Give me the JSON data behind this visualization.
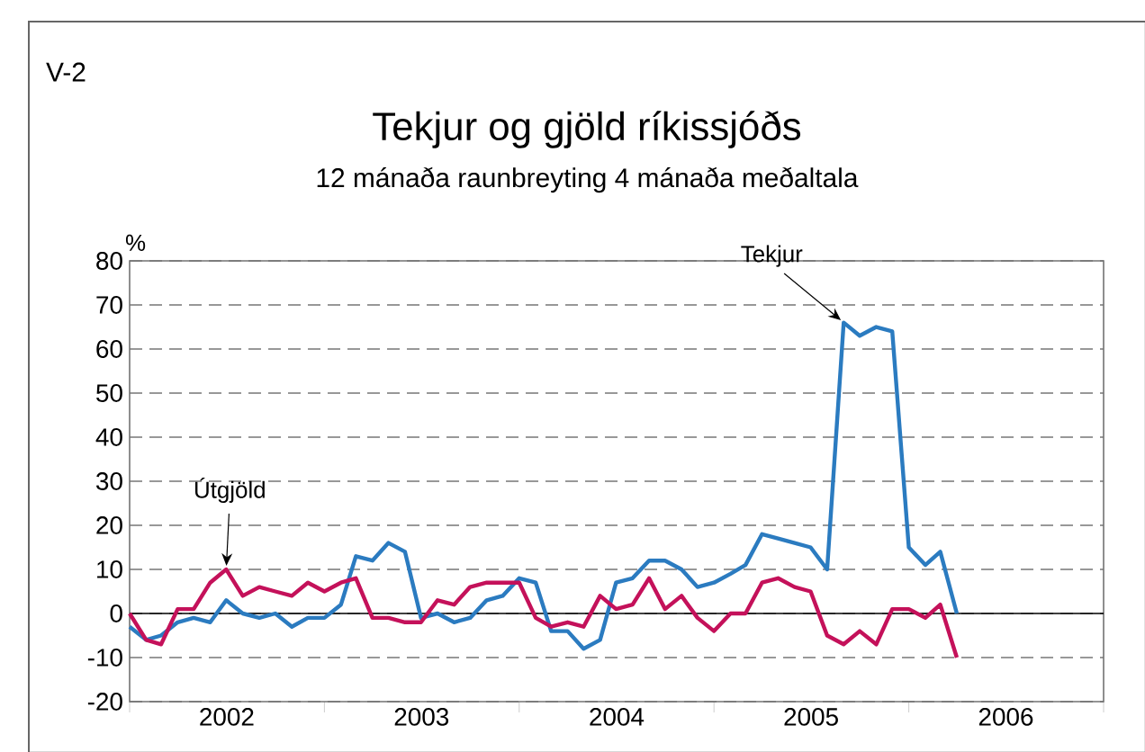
{
  "chart_data": {
    "type": "line",
    "title": "Tekjur og gjöld ríkissjóðs",
    "subtitle": "12 mánaða raunbreyting 4 mánaða meðaltala",
    "ylabel": "%",
    "x": [
      "2002-01",
      "2002-02",
      "2002-03",
      "2002-04",
      "2002-05",
      "2002-06",
      "2002-07",
      "2002-08",
      "2002-09",
      "2002-10",
      "2002-11",
      "2002-12",
      "2003-01",
      "2003-02",
      "2003-03",
      "2003-04",
      "2003-05",
      "2003-06",
      "2003-07",
      "2003-08",
      "2003-09",
      "2003-10",
      "2003-11",
      "2003-12",
      "2004-01",
      "2004-02",
      "2004-03",
      "2004-04",
      "2004-05",
      "2004-06",
      "2004-07",
      "2004-08",
      "2004-09",
      "2004-10",
      "2004-11",
      "2004-12",
      "2005-01",
      "2005-02",
      "2005-03",
      "2005-04",
      "2005-05",
      "2005-06",
      "2005-07",
      "2005-08",
      "2005-09",
      "2005-10",
      "2005-11",
      "2005-12",
      "2006-01",
      "2006-02",
      "2006-03",
      "2006-04"
    ],
    "series": [
      {
        "color": "#2b7bc0",
        "values": [
          -3,
          -6,
          -5,
          -2,
          -1,
          -2,
          3,
          0,
          -1,
          0,
          -3,
          -1,
          -1,
          2,
          13,
          12,
          16,
          14,
          -1,
          0,
          -2,
          -1,
          3,
          4,
          8,
          7,
          -4,
          -4,
          -8,
          -6,
          7,
          8,
          12,
          12,
          10,
          6,
          7,
          9,
          11,
          18,
          17,
          16,
          15,
          10,
          66,
          63,
          65,
          64,
          15,
          11,
          14,
          0
        ]
      },
      {
        "color": "#c4115a",
        "values": [
          0,
          -6,
          -7,
          1,
          1,
          7,
          10,
          4,
          6,
          5,
          4,
          7,
          5,
          7,
          8,
          -1,
          -1,
          -2,
          -2,
          3,
          2,
          6,
          7,
          7,
          7,
          -1,
          -3,
          -2,
          -3,
          4,
          1,
          2,
          8,
          1,
          4,
          -1,
          -4,
          0,
          0,
          7,
          8,
          6,
          5,
          -5,
          -7,
          -4,
          -7,
          1,
          1,
          -1,
          2,
          -10
        ]
      }
    ],
    "xlim": [
      "2002-01-01",
      "2007-01-01"
    ],
    "xticks": [
      {
        "value": "2002-01-01",
        "label": null
      },
      {
        "value": "2002-07-02",
        "label": "2002"
      },
      {
        "value": "2003-01-01",
        "label": null
      },
      {
        "value": "2003-07-02",
        "label": "2003"
      },
      {
        "value": "2004-01-01",
        "label": null
      },
      {
        "value": "2004-07-02",
        "label": "2004"
      },
      {
        "value": "2005-01-01",
        "label": null
      },
      {
        "value": "2005-07-02",
        "label": "2005"
      },
      {
        "value": "2006-01-01",
        "label": null
      },
      {
        "value": "2006-07-02",
        "label": "2006"
      },
      {
        "value": "2007-01-01",
        "label": null
      }
    ],
    "ylim": [
      -20,
      80
    ],
    "yticks": [
      -20,
      -10,
      0,
      10,
      20,
      30,
      40,
      50,
      60,
      70,
      80
    ],
    "grid": "y",
    "ref_lines": [
      {
        "axis": "y",
        "value": 0,
        "color": "#000000"
      }
    ],
    "annotations": [
      "V-2",
      {
        "text": "Tekjur",
        "x": "2005-09",
        "y": 66
      },
      {
        "text": "Útgjöld",
        "x": "2002-07",
        "y": 10
      }
    ]
  }
}
